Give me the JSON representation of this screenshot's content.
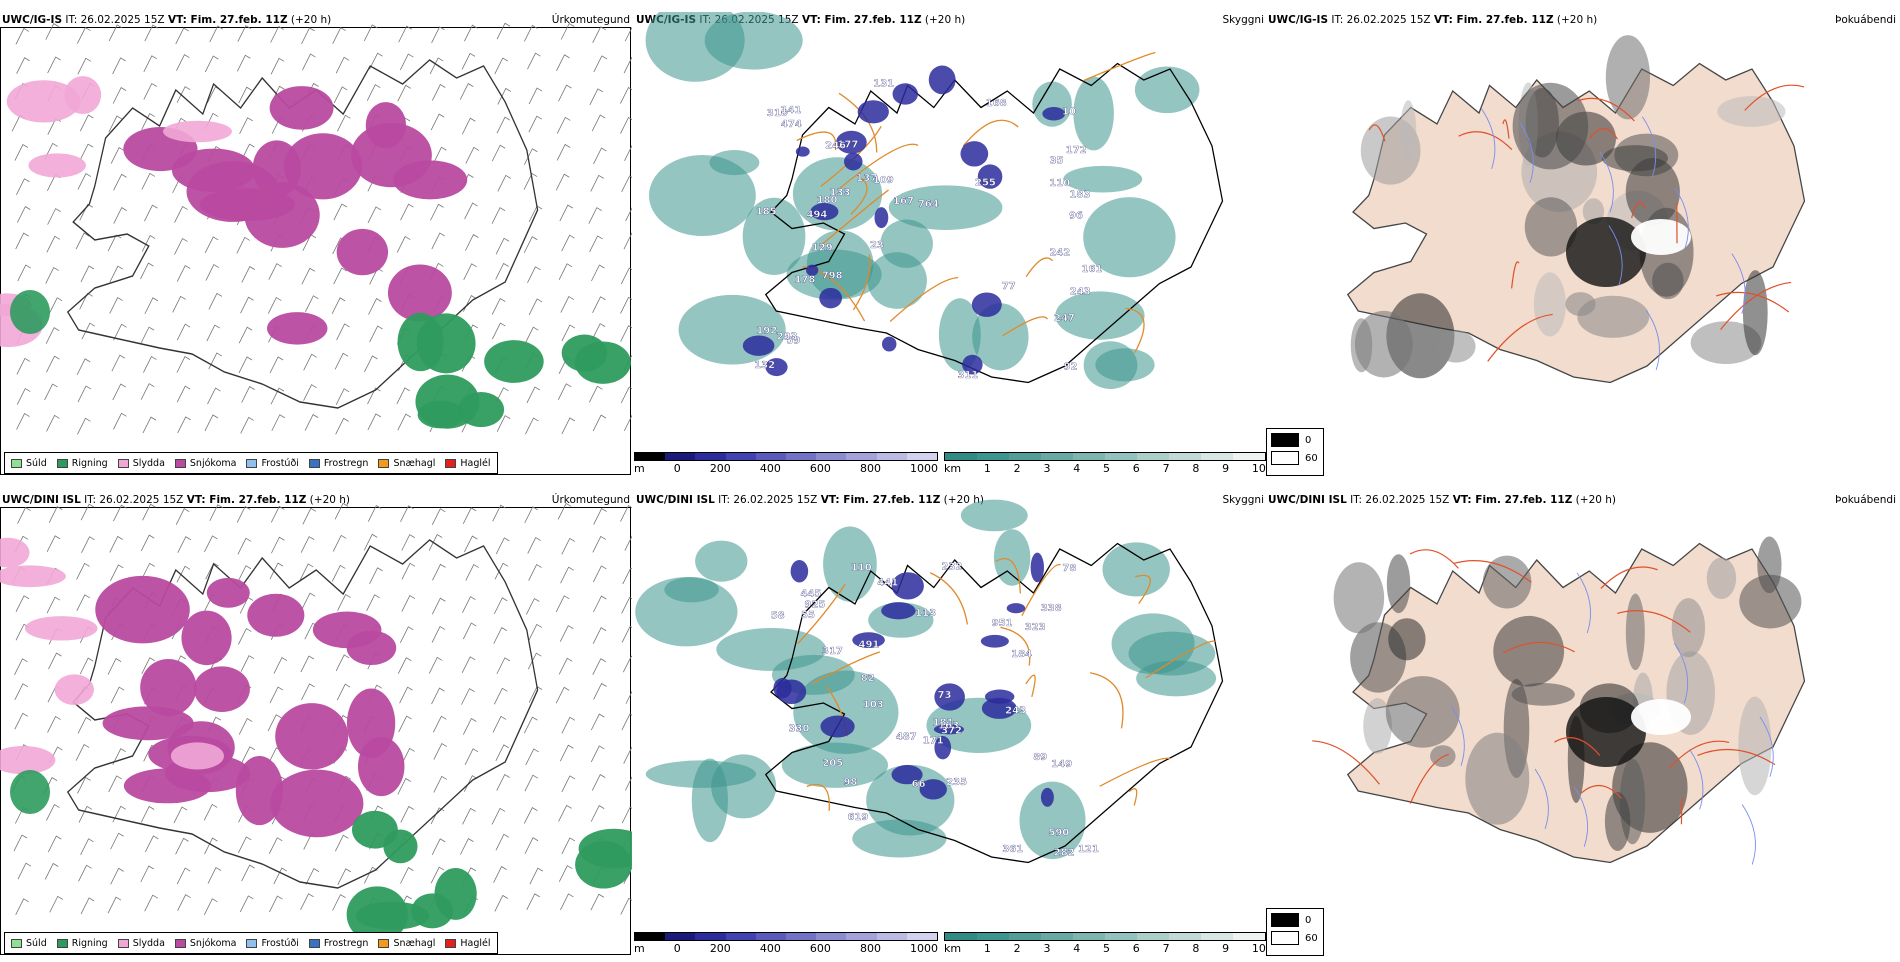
{
  "rows": [
    {
      "model": "UWC/IG-IS",
      "it": "IT: 26.02.2025 15Z",
      "vt_label": "VT: Fim. 27.feb. 11Z",
      "lead": "(+20 h)",
      "precip_title": "Úrkomutegund",
      "cloud_title": "Skyggni",
      "fog_title": "Þokuábendi",
      "vis_labels": [
        "59",
        "185",
        "77",
        "167",
        "96",
        "177",
        "243",
        "110",
        "180",
        "310",
        "494",
        "242",
        "132",
        "141",
        "168",
        "129",
        "161",
        "172",
        "35",
        "133",
        "183",
        "764",
        "178",
        "293",
        "137",
        "192",
        "311",
        "255",
        "246",
        "10",
        "247",
        "474",
        "23",
        "131",
        "92",
        "798",
        "109"
      ]
    },
    {
      "model": "UWC/DINI ISL",
      "it": "IT: 26.02.2025 15Z",
      "vt_label": "VT: Fim. 27.feb. 11Z",
      "lead": "(+20 h)",
      "precip_title": "Úrkomutegund",
      "cloud_title": "Skyggni",
      "fog_title": "Þokuábendi",
      "vis_labels": [
        "925",
        "113",
        "243",
        "491",
        "282",
        "445",
        "235",
        "181",
        "171",
        "619",
        "951",
        "317",
        "361",
        "184",
        "163",
        "82",
        "58",
        "149",
        "103",
        "338",
        "232",
        "330",
        "372",
        "590",
        "121",
        "66",
        "205",
        "110",
        "78",
        "89",
        "441",
        "98",
        "55",
        "73",
        "323",
        "487"
      ]
    }
  ],
  "precip_legend": [
    {
      "label": "Súld",
      "color": "#8fe08f"
    },
    {
      "label": "Rigning",
      "color": "#2e9b5e"
    },
    {
      "label": "Slydda",
      "color": "#f1a7d6"
    },
    {
      "label": "Snjókoma",
      "color": "#b94aa0"
    },
    {
      "label": "Frostúði",
      "color": "#8fbfef"
    },
    {
      "label": "Frostregn",
      "color": "#3a72c4"
    },
    {
      "label": "Snæhagl",
      "color": "#f29a1c"
    },
    {
      "label": "Haglél",
      "color": "#e2201c"
    }
  ],
  "ceiling_bar": {
    "unit": "m",
    "ticks": [
      "0",
      "200",
      "400",
      "600",
      "800",
      "1000"
    ],
    "colors": [
      "#000000",
      "#1a1a7a",
      "#2c2c9c",
      "#4242b0",
      "#5b5bbb",
      "#7373c6",
      "#8c8cd0",
      "#a3a3da",
      "#babae4",
      "#d2d2ee"
    ]
  },
  "vis_bar": {
    "unit": "km",
    "ticks": [
      "1",
      "2",
      "3",
      "4",
      "5",
      "6",
      "7",
      "8",
      "9",
      "10"
    ],
    "colors": [
      "#2f8b84",
      "#3e958e",
      "#519f98",
      "#66aaa3",
      "#7cb6af",
      "#93c2bc",
      "#aacec9",
      "#c1dad6",
      "#d8e7e4",
      "#eff4f3"
    ]
  },
  "fog_key": {
    "top": "0",
    "bottom": "60"
  }
}
